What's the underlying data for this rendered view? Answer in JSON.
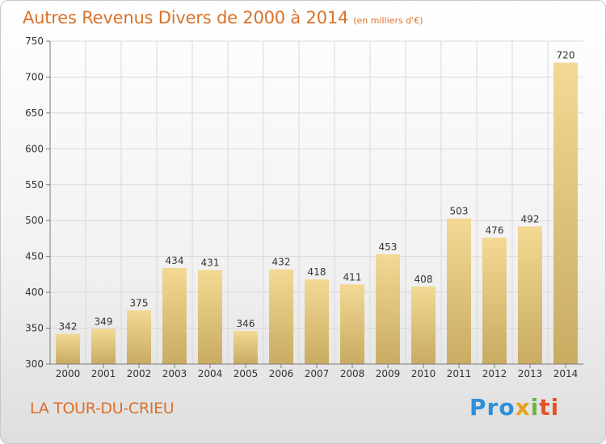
{
  "header": {
    "title": "Autres Revenus Divers de 2000 à 2014",
    "unit": "(en milliers d'€)"
  },
  "footer": {
    "commune": "LA TOUR-DU-CRIEU",
    "brand": [
      "Pro",
      "x",
      "i",
      "ti"
    ]
  },
  "colors": {
    "title": "#d9712a",
    "bar_light": "#f3d994",
    "bar_dark": "#c9ab62",
    "grid": "#d9d9d9",
    "axis": "#7a7a7a"
  },
  "chart_data": {
    "type": "bar",
    "title": "Autres Revenus Divers de 2000 à 2014",
    "xlabel": "",
    "ylabel": "",
    "categories": [
      "2000",
      "2001",
      "2002",
      "2003",
      "2004",
      "2005",
      "2006",
      "2007",
      "2008",
      "2009",
      "2010",
      "2011",
      "2012",
      "2013",
      "2014"
    ],
    "values": [
      342,
      349,
      375,
      434,
      431,
      346,
      432,
      418,
      411,
      453,
      408,
      503,
      476,
      492,
      720
    ],
    "ylim": [
      300,
      750
    ],
    "yticks": [
      300,
      350,
      400,
      450,
      500,
      550,
      600,
      650,
      700,
      750
    ],
    "grid": true,
    "legend": "none"
  }
}
